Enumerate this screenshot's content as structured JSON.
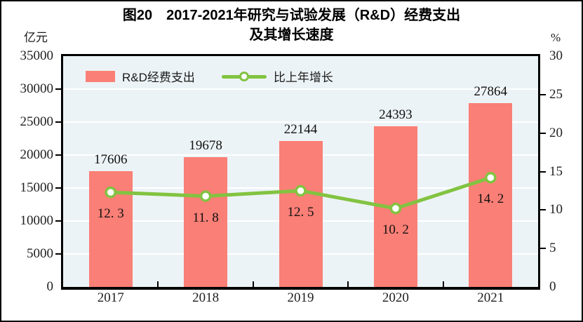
{
  "title": {
    "line1": "图20　2017-2021年研究与试验发展（R&D）经费支出",
    "line2": "及其增长速度"
  },
  "axes": {
    "left_unit": "亿元",
    "right_unit": "%",
    "left_ticks": [
      "35000",
      "30000",
      "25000",
      "20000",
      "15000",
      "10000",
      "5000",
      "0"
    ],
    "right_ticks": [
      "30",
      "25",
      "20",
      "15",
      "10",
      "5",
      "0"
    ]
  },
  "legend": {
    "items": [
      {
        "label": "R&D经费支出",
        "marker": "bar-swatch"
      },
      {
        "label": "比上年增长",
        "marker": "line-with-circle"
      }
    ]
  },
  "chart_data": {
    "type": "bar",
    "subtype": "bar+line combo",
    "title": "图20 2017-2021年研究与试验发展（R&D）经费支出及其增长速度",
    "categories": [
      "2017",
      "2018",
      "2019",
      "2020",
      "2021"
    ],
    "series": [
      {
        "name": "R&D经费支出",
        "type": "bar",
        "axis": "left",
        "values": [
          17606,
          19678,
          22144,
          24393,
          27864
        ],
        "labels": [
          "17606",
          "19678",
          "22144",
          "24393",
          "27864"
        ]
      },
      {
        "name": "比上年增长",
        "type": "line",
        "axis": "right",
        "values": [
          12.3,
          11.8,
          12.5,
          10.2,
          14.2
        ],
        "labels": [
          "12. 3",
          "11. 8",
          "12. 5",
          "10. 2",
          "14. 2"
        ]
      }
    ],
    "left_axis": {
      "label": "亿元",
      "min": 0,
      "max": 35000,
      "step": 5000
    },
    "right_axis": {
      "label": "%",
      "min": 0,
      "max": 30,
      "step": 5
    },
    "grid": true,
    "legend_position": "inside-top-left"
  },
  "colors": {
    "bar": "#FA7F76",
    "line": "#82C341",
    "marker_fill": "#FFFFFF",
    "plot_bg": "#ECF3F6",
    "grid": "#FFFFFF",
    "axis": "#000000",
    "text": "#1A1A1A"
  }
}
